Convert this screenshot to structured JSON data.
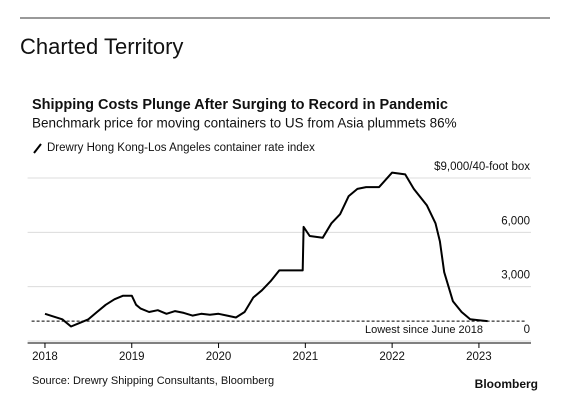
{
  "header": {
    "section": "Charted Territory"
  },
  "chart_data": {
    "type": "line",
    "title": "Shipping Costs Plunge After Surging to Record in Pandemic",
    "subtitle": "Benchmark price for moving containers to US from Asia plummets 86%",
    "series": [
      {
        "name": "Drewry Hong Kong-Los Angeles container rate index",
        "color": "#000000",
        "x": [
          2018.0,
          2018.1,
          2018.2,
          2018.3,
          2018.4,
          2018.5,
          2018.6,
          2018.7,
          2018.8,
          2018.9,
          2019.0,
          2019.05,
          2019.1,
          2019.2,
          2019.3,
          2019.4,
          2019.5,
          2019.6,
          2019.7,
          2019.8,
          2019.9,
          2020.0,
          2020.1,
          2020.2,
          2020.3,
          2020.4,
          2020.5,
          2020.6,
          2020.7,
          2020.8,
          2020.97,
          2020.98,
          2021.05,
          2021.2,
          2021.3,
          2021.4,
          2021.5,
          2021.6,
          2021.7,
          2021.85,
          2022.0,
          2022.15,
          2022.25,
          2022.4,
          2022.5,
          2022.55,
          2022.6,
          2022.7,
          2022.8,
          2022.9,
          2023.0,
          2023.1
        ],
        "values": [
          1500,
          1350,
          1200,
          800,
          1000,
          1200,
          1600,
          2000,
          2300,
          2500,
          2500,
          2000,
          1800,
          1600,
          1700,
          1500,
          1650,
          1550,
          1400,
          1500,
          1450,
          1500,
          1400,
          1300,
          1600,
          2400,
          2800,
          3300,
          3900,
          3900,
          3900,
          6300,
          5800,
          5700,
          6500,
          7000,
          8000,
          8400,
          8500,
          8500,
          9300,
          9200,
          8400,
          7500,
          6500,
          5500,
          3800,
          2200,
          1600,
          1200,
          1150,
          1100
        ]
      }
    ],
    "reference_line": {
      "value": 1100,
      "label": "Lowest since June 2018"
    },
    "xlim": [
      2017.8,
      2023.6
    ],
    "xticks": [
      2018,
      2019,
      2020,
      2021,
      2022,
      2023
    ],
    "ylim": [
      0,
      9000
    ],
    "yticks": [
      0,
      {
        "value": 3000,
        "label": "3,000"
      },
      {
        "value": 6000,
        "label": "6,000"
      },
      {
        "value": 9000,
        "label": "$9,000/40-foot box"
      }
    ],
    "grid": true,
    "source": "Source: Drewry Shipping Consultants, Bloomberg"
  },
  "footer": {
    "brand": "Bloomberg"
  }
}
